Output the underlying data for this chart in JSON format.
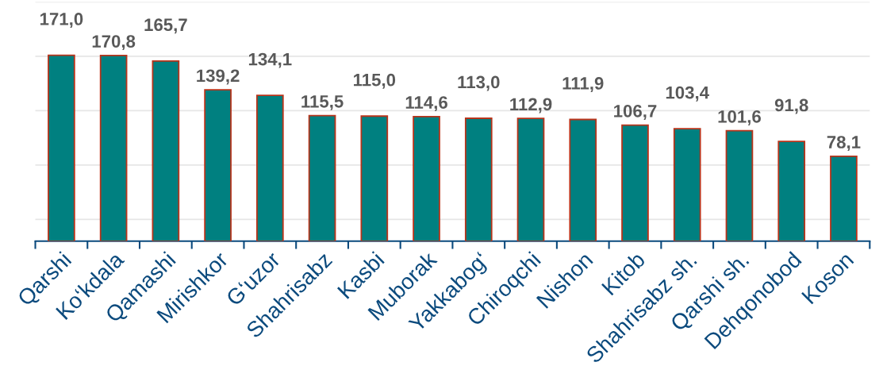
{
  "chart_data": {
    "type": "bar",
    "categories": [
      "Qarshi",
      "Ko‘kdala",
      "Qamashi",
      "Mirishkor",
      "G‘uzor",
      "Shahrisabz",
      "Kasbi",
      "Muborak",
      "Yakkabog‘",
      "Chiroqchi",
      "Nishon",
      "Kitob",
      "Shahrisabz sh.",
      "Qarshi sh.",
      "Dehqonobod",
      "Koson"
    ],
    "values": [
      171.0,
      170.8,
      165.7,
      139.2,
      134.1,
      115.5,
      115.0,
      114.6,
      113.0,
      112.9,
      111.9,
      106.7,
      103.4,
      101.6,
      91.8,
      78.1
    ],
    "value_labels": [
      "171,0",
      "170,8",
      "165,7",
      "139,2",
      "134,1",
      "115,5",
      "115,0",
      "114,6",
      "113,0",
      "112,9",
      "111,9",
      "106,7",
      "103,4",
      "101,6",
      "91,8",
      "78,1"
    ],
    "color": "#008080",
    "ylim": [
      0,
      220
    ],
    "yticks": [
      {
        "value": 20,
        "label": null
      },
      {
        "value": 70,
        "label": null
      },
      {
        "value": 120,
        "label": null
      },
      {
        "value": 170,
        "label": null
      },
      {
        "value": 220,
        "label": null
      }
    ],
    "tick_labels": "x",
    "grid": "y"
  }
}
